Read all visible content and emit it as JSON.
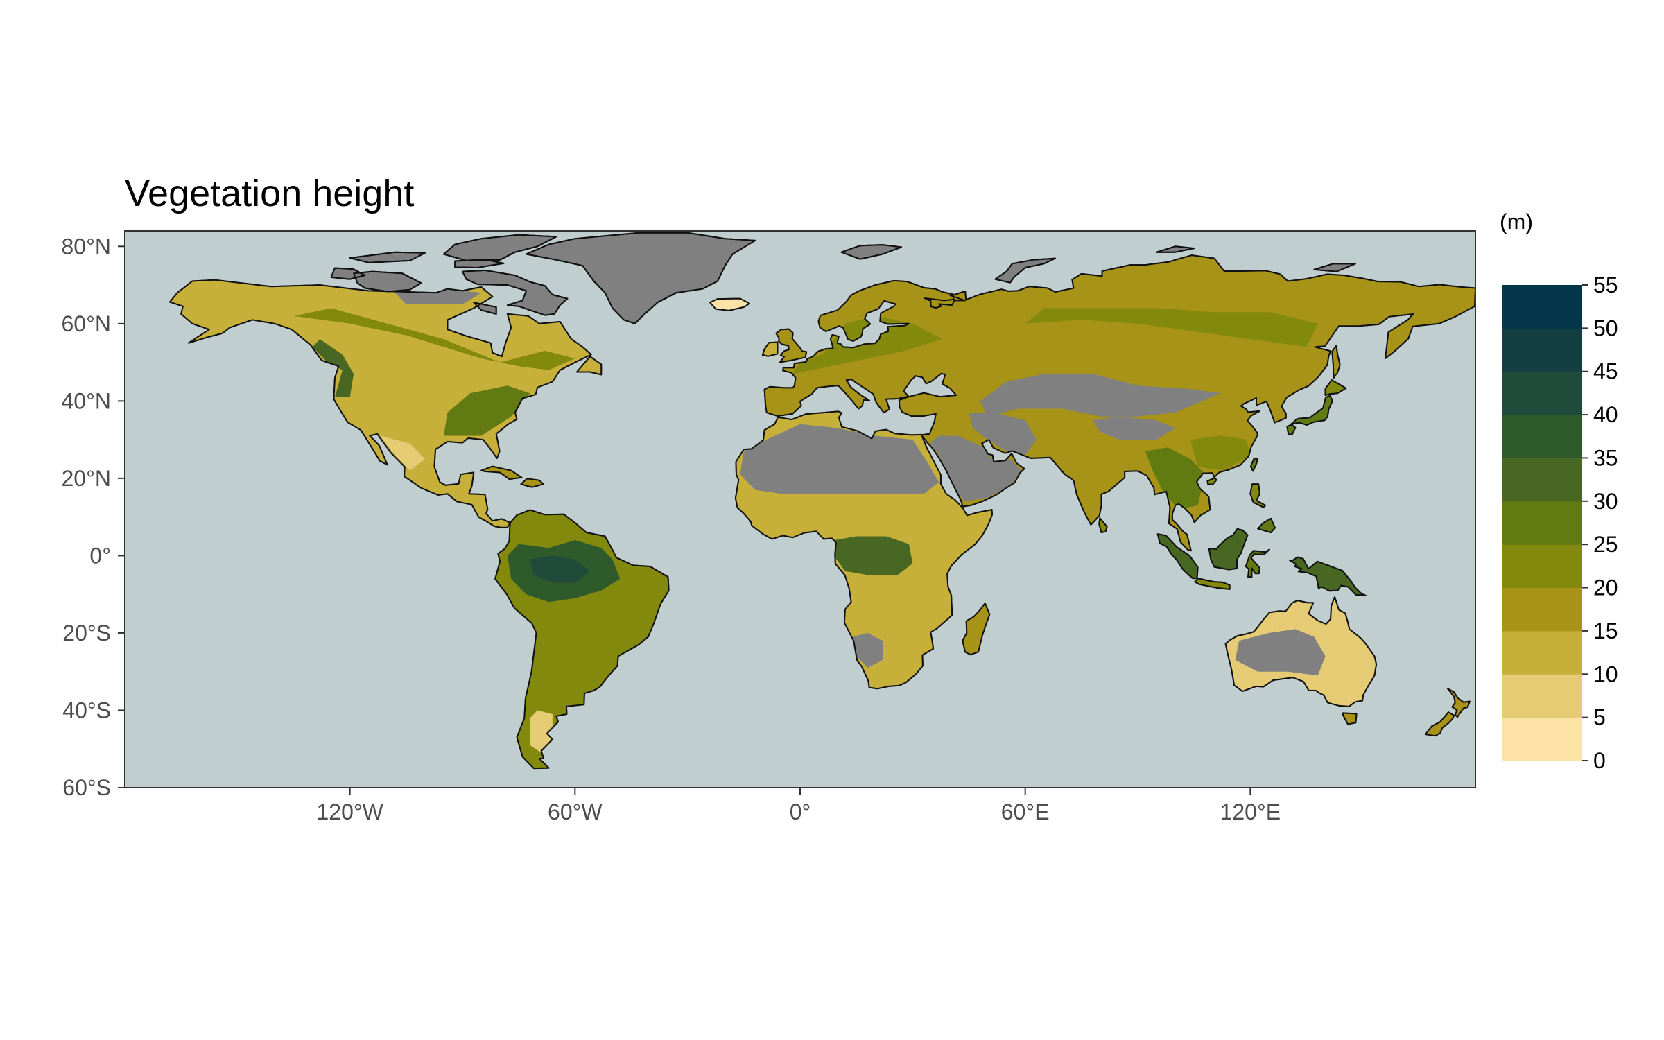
{
  "chart_data": {
    "type": "heatmap",
    "title": "Vegetation height",
    "xlabel": "",
    "ylabel": "",
    "projection": "equirectangular",
    "xlim": [
      -180,
      180
    ],
    "ylim": [
      -60,
      84
    ],
    "x_ticks": [
      -120,
      -60,
      0,
      60,
      120
    ],
    "x_tick_labels": [
      "120°W",
      "60°W",
      "0°",
      "60°E",
      "120°E"
    ],
    "y_ticks": [
      80,
      60,
      40,
      20,
      0,
      -20,
      -40,
      -60
    ],
    "y_tick_labels": [
      "80°N",
      "60°N",
      "40°N",
      "20°N",
      "0°",
      "20°S",
      "40°S",
      "60°S"
    ],
    "ocean_color": "#c1cecf",
    "no_data_land_color": "#808080",
    "grid": false,
    "legend": {
      "title": "(m)",
      "placement": "right",
      "breaks": [
        0,
        5,
        10,
        15,
        20,
        25,
        30,
        35,
        40,
        45,
        50,
        55
      ],
      "break_labels": [
        "0",
        "5",
        "10",
        "15",
        "20",
        "25",
        "30",
        "35",
        "40",
        "45",
        "50",
        "55"
      ],
      "colors": [
        "#fee3a8",
        "#e4cb74",
        "#c6b03a",
        "#a79317",
        "#82890c",
        "#627a12",
        "#476723",
        "#2e5a2c",
        "#204b3a",
        "#143f42",
        "#03364a"
      ]
    }
  }
}
